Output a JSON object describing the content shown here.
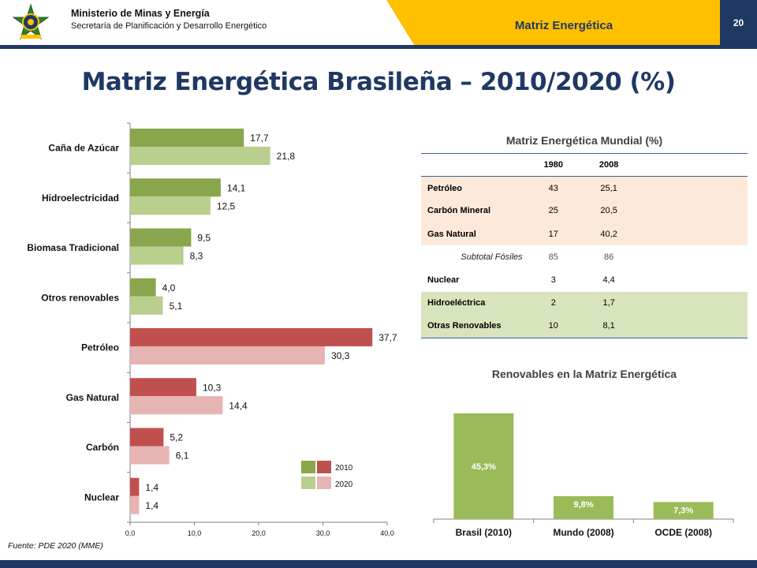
{
  "header": {
    "ministry": "Ministerio de Minas y Energía",
    "secretary": "Secretaría de Planificación y Desarrollo Energético",
    "topic": "Matriz Energética",
    "page_number": "20",
    "colors": {
      "navy": "#1f3864",
      "yellow": "#ffc000"
    }
  },
  "title": "Matriz Energética Brasileña – 2010/2020 (%)",
  "chart_data": [
    {
      "type": "bar",
      "orientation": "horizontal",
      "categories": [
        "Caña de Azúcar",
        "Hidroelectricidad",
        "Biomasa Tradicional",
        "Otros renovables",
        "Petróleo",
        "Gas Natural",
        "Carbón",
        "Nuclear"
      ],
      "series": [
        {
          "name": "2010",
          "values": [
            17.7,
            14.1,
            9.5,
            4.0,
            37.7,
            10.3,
            5.2,
            1.4
          ]
        },
        {
          "name": "2020",
          "values": [
            21.8,
            12.5,
            8.3,
            5.1,
            30.3,
            14.4,
            6.1,
            1.4
          ]
        }
      ],
      "value_labels": {
        "2010": [
          "17,7",
          "14,1",
          "9,5",
          "4,0",
          "37,7",
          "10,3",
          "5,2",
          "1,4"
        ],
        "2020": [
          "21,8",
          "12,5",
          "8,3",
          "5,1",
          "30,3",
          "14,4",
          "6,1",
          "1,4"
        ]
      },
      "colors": {
        "renewable": {
          "2010": "#8aa64d",
          "2020": "#b8cf8e"
        },
        "nonrenewable": {
          "2010": "#c0504d",
          "2020": "#e6b4b3"
        }
      },
      "renewable_count": 4,
      "xlim": [
        0,
        40
      ],
      "xticks": [
        0,
        10,
        20,
        30,
        40
      ],
      "xtick_labels": [
        "0,0",
        "10,0",
        "20,0",
        "30,0",
        "40,0"
      ],
      "legend_position": "bottom-right",
      "grid": false
    },
    {
      "type": "bar",
      "orientation": "vertical",
      "title": "Renovables en la Matriz Energética",
      "categories": [
        "Brasil (2010)",
        "Mundo (2008)",
        "OCDE (2008)"
      ],
      "values": [
        45.3,
        9.8,
        7.3
      ],
      "value_labels": [
        "45,3%",
        "9,8%",
        "7,3%"
      ],
      "color": "#9bbb59",
      "ylim": [
        0,
        50
      ],
      "grid": false
    }
  ],
  "world_table": {
    "title": "Matriz Energética Mundial (%)",
    "columns": [
      "1980",
      "2008"
    ],
    "rows": [
      {
        "name": "Petróleo",
        "v1980": "43",
        "v2008": "25,1"
      },
      {
        "name": "Carbón Mineral",
        "v1980": "25",
        "v2008": "20,5"
      },
      {
        "name": "Gas Natural",
        "v1980": "17",
        "v2008": "40,2"
      },
      {
        "name": "Subtotal Fósiles",
        "v1980": "85",
        "v2008": "86"
      },
      {
        "name": "Nuclear",
        "v1980": "3",
        "v2008": "4,4"
      },
      {
        "name": "Hidroeléctrica",
        "v1980": "2",
        "v2008": "1,7"
      },
      {
        "name": "Otras Renovables",
        "v1980": "10",
        "v2008": "8,1"
      }
    ]
  },
  "footer": {
    "source": "Fuente:  PDE 2020 (MME)"
  }
}
